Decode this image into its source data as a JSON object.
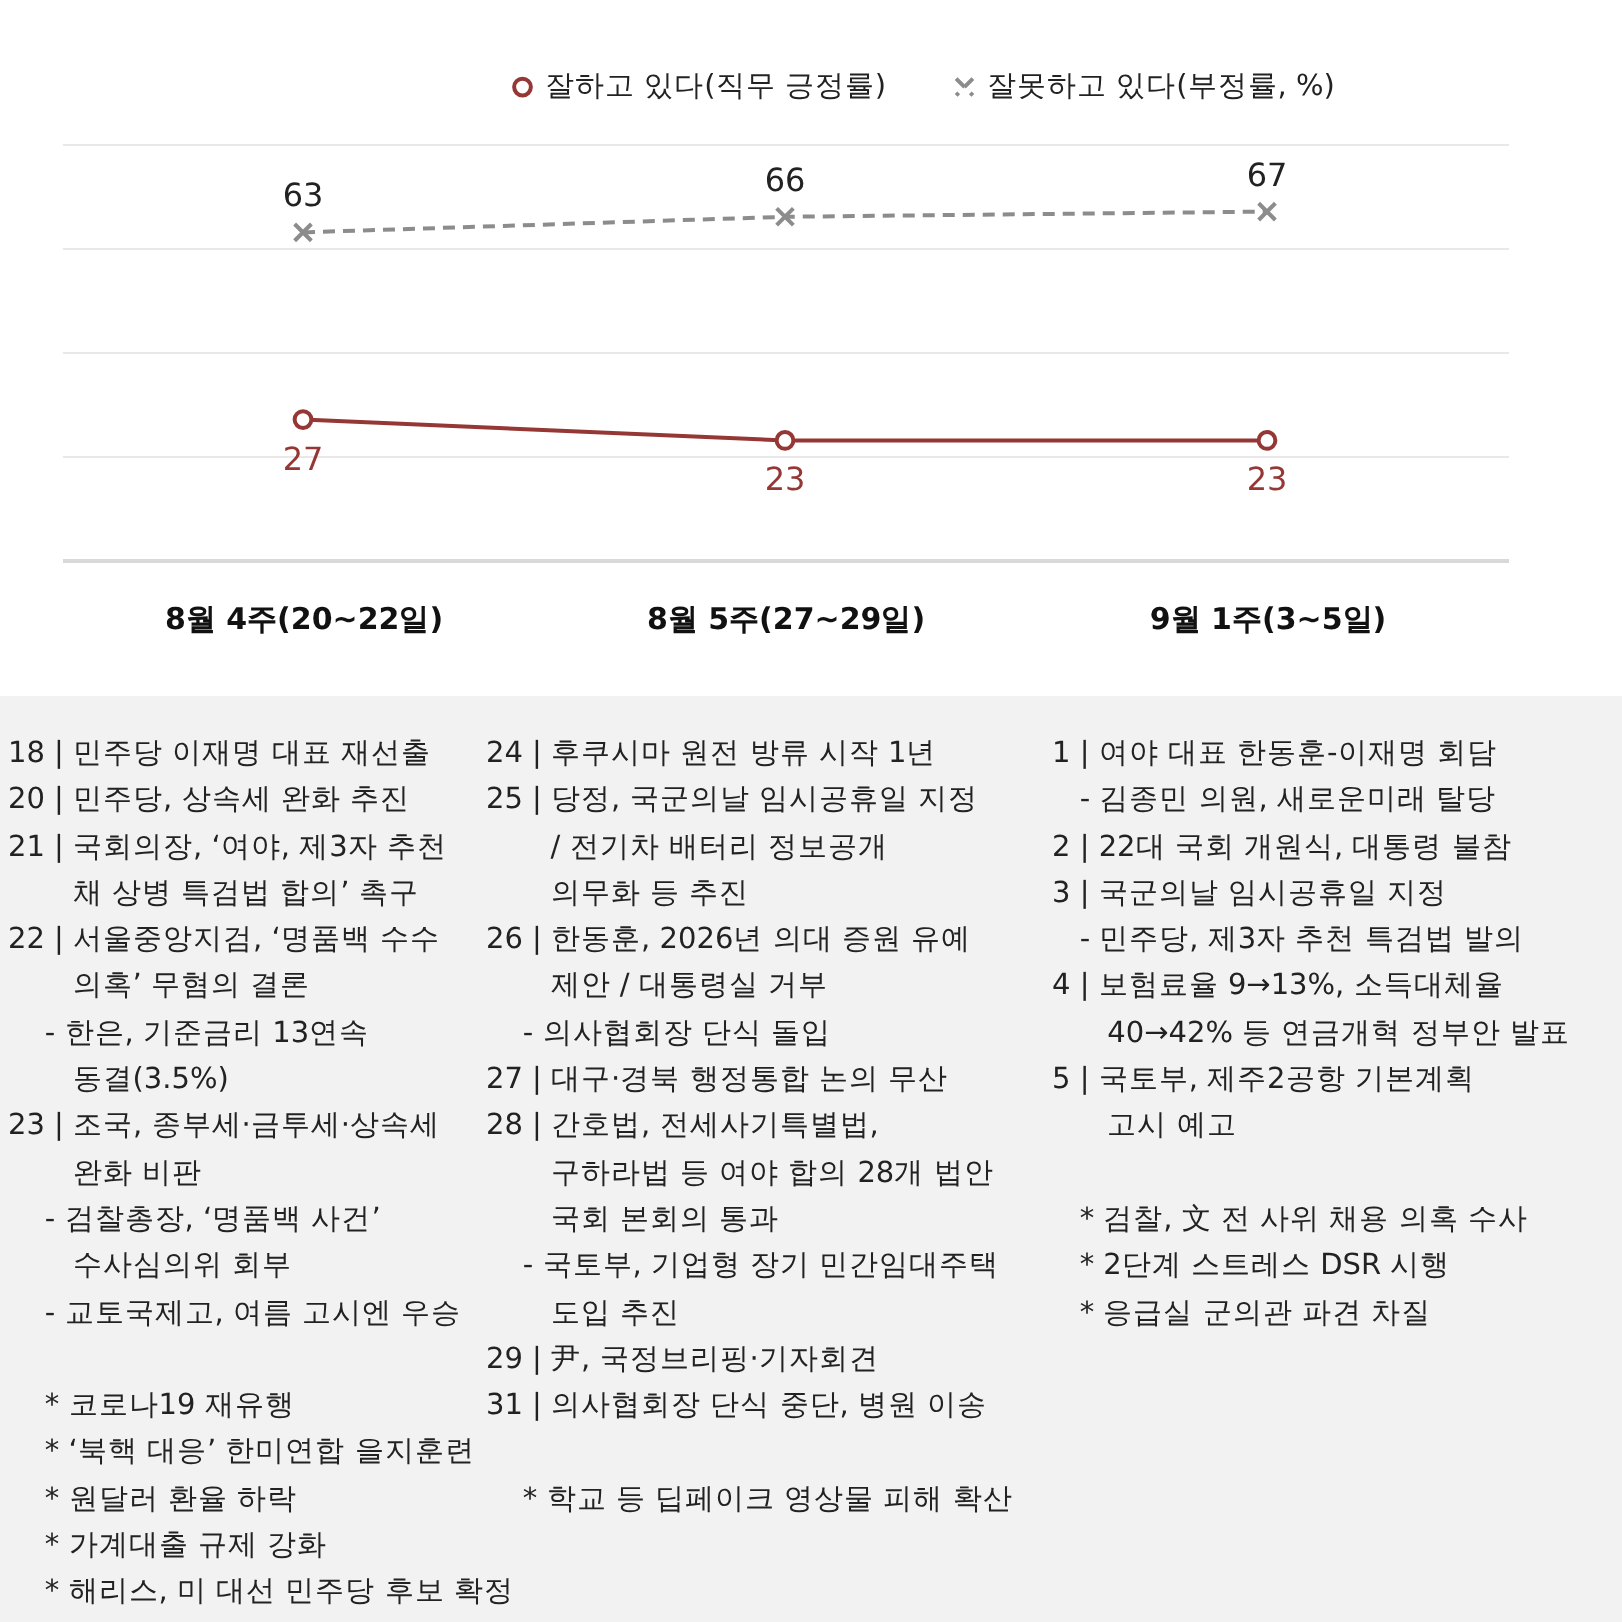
{
  "chart_data": {
    "type": "line",
    "categories": [
      "8월 4주(20~22일)",
      "8월 5주(27~29일)",
      "9월 1주(3~5일)"
    ],
    "series": [
      {
        "name": "잘하고 있다(직무 긍정률)",
        "color": "#953735",
        "values": [
          27,
          23,
          23
        ],
        "marker": "circle",
        "line_style": "solid"
      },
      {
        "name": "잘못하고 있다(부정률, %)",
        "color": "#8c8c8c",
        "values": [
          63,
          66,
          67
        ],
        "marker": "cross",
        "line_style": "dashed"
      }
    ],
    "ylim": [
      0,
      80
    ],
    "yticks": [
      {
        "value": 0,
        "label": null
      },
      {
        "value": 20,
        "label": null
      },
      {
        "value": 40,
        "label": null
      },
      {
        "value": 60,
        "label": null
      },
      {
        "value": 80,
        "label": null
      }
    ],
    "tick_labels": "x",
    "grid": "y",
    "legend": "top right",
    "data_labels": true,
    "annotations": [
      "18 | 민주당 이재명 대표 재선출\n20 | 민주당, 상속세 완화 추진\n21 | 국회의장, ‘여야, 제3자 추천\n       채 상병 특검법 합의’ 촉구\n22 | 서울중앙지검, ‘명품백 수수\n       의혹’ 무혐의 결론\n    - 한은, 기준금리 13연속\n       동결(3.5%)\n23 | 조국, 종부세·금투세·상속세\n       완화 비판\n    - 검찰총장, ‘명품백 사건’\n       수사심의위 회부\n    - 교토국제고, 여름 고시엔 우승\n\n    * 코로나19 재유행\n    * ‘북핵 대응’ 한미연합 을지훈련\n    * 원달러 환율 하락\n    * 가계대출 규제 강화\n    * 해리스, 미 대선 민주당 후보 확정",
      "24 | 후쿠시마 원전 방류 시작 1년\n25 | 당정, 국군의날 임시공휴일 지정\n       / 전기차 배터리 정보공개\n       의무화 등 추진\n26 | 한동훈, 2026년 의대 증원 유예\n       제안 / 대통령실 거부\n    - 의사협회장 단식 돌입\n27 | 대구·경북 행정통합 논의 무산\n28 | 간호법, 전세사기특별법,\n       구하라법 등 여야 합의 28개 법안\n       국회 본회의 통과\n    - 국토부, 기업형 장기 민간임대주택\n       도입 추진\n29 | 尹, 국정브리핑·기자회견\n31 | 의사협회장 단식 중단, 병원 이송\n\n    * 학교 등 딥페이크 영상물 피해 확산",
      "1 | 여야 대표 한동훈-이재명 회담\n   - 김종민 의원, 새로운미래 탈당\n2 | 22대 국회 개원식, 대통령 불참\n3 | 국군의날 임시공휴일 지정\n   - 민주당, 제3자 추천 특검법 발의\n4 | 보험료율 9→13%, 소득대체율\n      40→42% 등 연금개혁 정부안 발표\n5 | 국토부, 제주2공항 기본계획\n      고시 예고\n\n   * 검찰, 文 전 사위 채용 의혹 수사\n   * 2단계 스트레스 DSR 시행\n   * 응급실 군의관 파견 차질"
    ]
  }
}
